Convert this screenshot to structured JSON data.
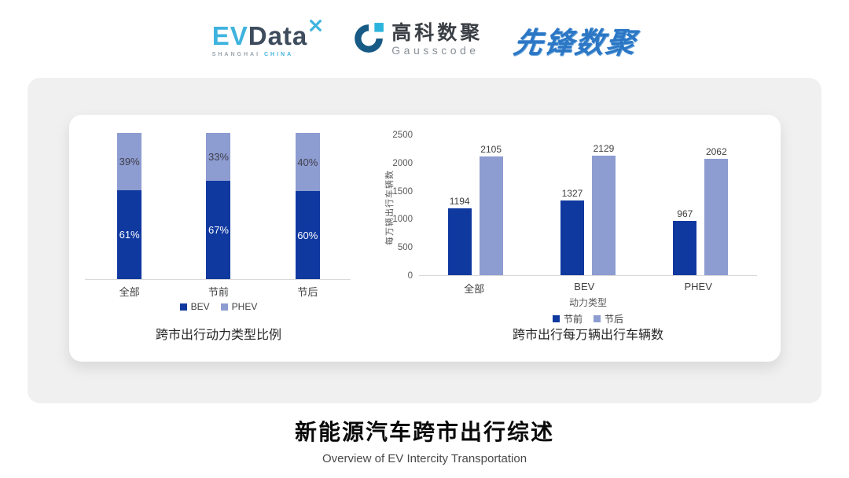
{
  "header": {
    "evdata_logo": {
      "ev": "EV",
      "data": "Data",
      "sub_left": "SHANGHAI",
      "sub_right": "CHINA"
    },
    "gausscode_logo": {
      "cn": "高科数聚",
      "en": "Gausscode"
    },
    "pioneer_logo": {
      "text": "先锋数聚"
    }
  },
  "footer": {
    "title": "新能源汽车跨市出行综述",
    "subtitle": "Overview of EV Intercity Transportation"
  },
  "colors": {
    "dark_blue": "#1039a0",
    "light_blue": "#8d9cd1",
    "card_gray": "#f0f0f0",
    "axis_gray": "#d9d9d9",
    "text_dark": "#404040",
    "tick_gray": "#595959"
  },
  "chart_data": [
    {
      "type": "bar",
      "subtype": "stacked-100",
      "title": "跨市出行动力类型比例",
      "categories": [
        "全部",
        "节前",
        "节后"
      ],
      "series": [
        {
          "name": "BEV",
          "color": "#1039a0",
          "label_color": "#ffffff",
          "values": [
            61,
            67,
            60
          ],
          "labels": [
            "61%",
            "67%",
            "60%"
          ]
        },
        {
          "name": "PHEV",
          "color": "#8d9cd1",
          "label_color": "#3f3f4a",
          "values": [
            39,
            33,
            40
          ],
          "labels": [
            "39%",
            "33%",
            "40%"
          ]
        }
      ],
      "ylim": [
        0,
        100
      ],
      "legend_position": "bottom",
      "grid": false
    },
    {
      "type": "bar",
      "subtype": "grouped",
      "title": "跨市出行每万辆出行车辆数",
      "xlabel": "动力类型",
      "ylabel": "每万辆出行车辆数",
      "ylim": [
        0,
        2500
      ],
      "yticks": [
        0,
        500,
        1000,
        1500,
        2000,
        2500
      ],
      "categories": [
        "全部",
        "BEV",
        "PHEV"
      ],
      "series": [
        {
          "name": "节前",
          "color": "#1039a0",
          "values": [
            1194,
            1327,
            967
          ]
        },
        {
          "name": "节后",
          "color": "#8d9cd1",
          "values": [
            2105,
            2129,
            2062
          ]
        }
      ],
      "legend_position": "bottom",
      "grid": false
    }
  ]
}
